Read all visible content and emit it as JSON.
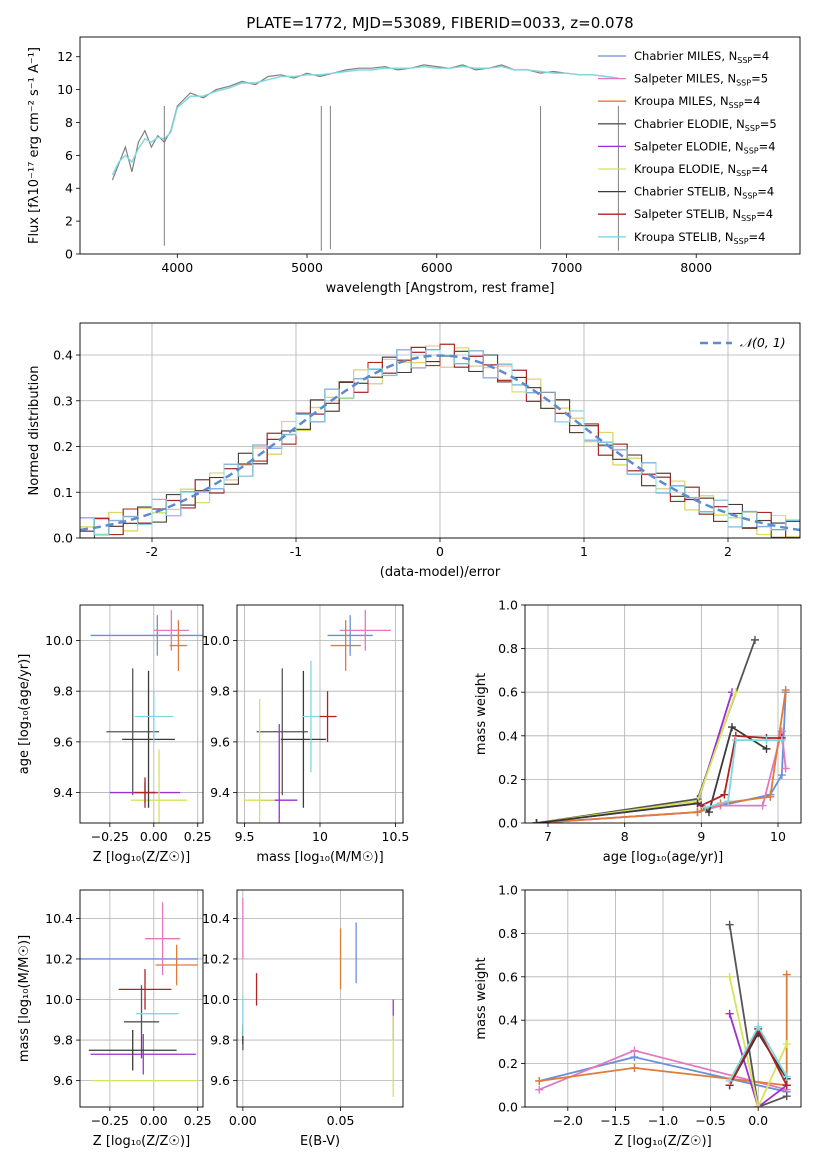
{
  "figure": {
    "title": "PLATE=1772, MJD=53089, FIBERID=0033, z=0.078"
  },
  "models": [
    {
      "label": "Chabrier MILES, N",
      "nssp": "4",
      "color": "#6a8fd8"
    },
    {
      "label": "Salpeter MILES, N",
      "nssp": "5",
      "color": "#e377c2"
    },
    {
      "label": "Kroupa MILES, N",
      "nssp": "4",
      "color": "#e07b39"
    },
    {
      "label": "Chabrier ELODIE, N",
      "nssp": "5",
      "color": "#555555"
    },
    {
      "label": "Salpeter ELODIE, N",
      "nssp": "4",
      "color": "#9b30d0"
    },
    {
      "label": "Kroupa ELODIE, N",
      "nssp": "4",
      "color": "#d7e35a"
    },
    {
      "label": "Chabrier STELIB, N",
      "nssp": "4",
      "color": "#3a3a3a"
    },
    {
      "label": "Salpeter STELIB, N",
      "nssp": "4",
      "color": "#b22222"
    },
    {
      "label": "Kroupa STELIB, N",
      "nssp": "4",
      "color": "#7fd7e0"
    }
  ],
  "chart_data": [
    {
      "id": "spectrum",
      "type": "line",
      "title": "PLATE=1772, MJD=53089, FIBERID=0033, z=0.078",
      "xlabel": "wavelength [Angstrom, rest frame]",
      "ylabel": "Flux [fλ10⁻¹⁷ erg cm⁻² s⁻¹ A⁻¹]",
      "xlim": [
        3250,
        8800
      ],
      "ylim": [
        0,
        13.2
      ],
      "xticks": [
        4000,
        5000,
        6000,
        7000,
        8000
      ],
      "yticks": [
        0,
        2,
        4,
        6,
        8,
        10,
        12
      ],
      "legend": "right",
      "series": [
        {
          "name": "data",
          "color": "#808080",
          "x": [
            3500,
            3550,
            3600,
            3650,
            3700,
            3750,
            3800,
            3850,
            3900,
            3950,
            4000,
            4100,
            4200,
            4300,
            4400,
            4500,
            4600,
            4700,
            4800,
            4900,
            5000,
            5100,
            5200,
            5300,
            5400,
            5500,
            5600,
            5700,
            5800,
            5900,
            6000,
            6100,
            6200,
            6300,
            6400,
            6500,
            6600,
            6700,
            6800,
            6900,
            7000,
            7100,
            7200,
            7300,
            7400
          ],
          "y": [
            4.5,
            5.5,
            6.5,
            5.0,
            6.8,
            7.5,
            6.5,
            7.2,
            6.8,
            7.5,
            9.0,
            9.8,
            9.5,
            10.0,
            10.2,
            10.5,
            10.3,
            10.8,
            10.9,
            10.7,
            11.0,
            10.8,
            11.0,
            11.2,
            11.3,
            11.3,
            11.4,
            11.2,
            11.3,
            11.5,
            11.4,
            11.3,
            11.5,
            11.2,
            11.3,
            11.5,
            11.2,
            11.2,
            11.0,
            11.1,
            11.0,
            10.9,
            10.9,
            10.8,
            10.7
          ]
        },
        {
          "name": "model",
          "color": "#7fd7e0",
          "x": [
            3500,
            3550,
            3600,
            3650,
            3700,
            3750,
            3800,
            3850,
            3900,
            3950,
            4000,
            4100,
            4200,
            4300,
            4400,
            4500,
            4600,
            4700,
            4800,
            4900,
            5000,
            5100,
            5200,
            5300,
            5400,
            5500,
            5600,
            5700,
            5800,
            5900,
            6000,
            6100,
            6200,
            6300,
            6400,
            6500,
            6600,
            6700,
            6800,
            6900,
            7000,
            7100,
            7200,
            7300,
            7400
          ],
          "y": [
            4.8,
            5.6,
            6.0,
            5.6,
            6.4,
            7.0,
            6.8,
            7.1,
            7.0,
            7.4,
            8.9,
            9.6,
            9.6,
            9.9,
            10.1,
            10.4,
            10.4,
            10.6,
            10.8,
            10.8,
            10.9,
            10.9,
            11.0,
            11.1,
            11.2,
            11.2,
            11.3,
            11.3,
            11.3,
            11.4,
            11.3,
            11.3,
            11.4,
            11.3,
            11.3,
            11.4,
            11.2,
            11.2,
            11.1,
            11.0,
            11.0,
            10.9,
            10.9,
            10.8,
            10.7
          ]
        }
      ]
    },
    {
      "id": "residuals",
      "type": "line",
      "xlabel": "(data-model)/error",
      "ylabel": "Normed distribution",
      "xlim": [
        -2.5,
        2.5
      ],
      "ylim": [
        0,
        0.47
      ],
      "xticks": [
        -2,
        -1,
        0,
        1,
        2
      ],
      "yticks": [
        0.0,
        0.1,
        0.2,
        0.3,
        0.4
      ],
      "legend": "top-right",
      "gauss_label": "𝒩(0, 1)",
      "gauss_color": "#5b8bd0"
    },
    {
      "id": "z_age",
      "type": "scatter",
      "xlabel": "Z [log₁₀(Z/Z☉)]",
      "ylabel": "age  [log₁₀(age/yr)]",
      "xlim": [
        -0.42,
        0.28
      ],
      "ylim": [
        9.28,
        10.14
      ],
      "xticks": [
        -0.25,
        0.0,
        0.25
      ],
      "xtick_labels": [
        "−0.25",
        "0.00",
        "0.25"
      ],
      "yticks": [
        9.4,
        9.6,
        9.8,
        10.0
      ],
      "points": [
        {
          "x": 0.02,
          "y": 10.02,
          "xerr": 0.38,
          "yerr": 0.08
        },
        {
          "x": 0.1,
          "y": 10.04,
          "xerr": 0.1,
          "yerr": 0.08
        },
        {
          "x": 0.14,
          "y": 9.98,
          "xerr": 0.05,
          "yerr": 0.1
        },
        {
          "x": -0.12,
          "y": 9.64,
          "xerr": 0.15,
          "yerr": 0.25
        },
        {
          "x": -0.05,
          "y": 9.4,
          "xerr": 0.2,
          "yerr": 0.04
        },
        {
          "x": 0.03,
          "y": 9.37,
          "xerr": 0.16,
          "yerr": 0.2
        },
        {
          "x": -0.03,
          "y": 9.61,
          "xerr": 0.15,
          "yerr": 0.27
        },
        {
          "x": -0.05,
          "y": 9.4,
          "xerr": 0.06,
          "yerr": 0.06
        },
        {
          "x": 0.0,
          "y": 9.7,
          "xerr": 0.11,
          "yerr": 0.1
        }
      ]
    },
    {
      "id": "mass_age",
      "type": "scatter",
      "xlabel": "mass [log₁₀(M/M☉)]",
      "ylabel": "",
      "xlim": [
        9.45,
        10.55
      ],
      "ylim": [
        9.28,
        10.14
      ],
      "xticks": [
        9.5,
        10.0,
        10.5
      ],
      "yticks": [
        9.4,
        9.6,
        9.8,
        10.0
      ],
      "points": [
        {
          "x": 10.2,
          "y": 10.02,
          "xerr": 0.15,
          "yerr": 0.08
        },
        {
          "x": 10.3,
          "y": 10.04,
          "xerr": 0.17,
          "yerr": 0.08
        },
        {
          "x": 10.17,
          "y": 9.98,
          "xerr": 0.1,
          "yerr": 0.1
        },
        {
          "x": 9.75,
          "y": 9.64,
          "xerr": 0.17,
          "yerr": 0.25
        },
        {
          "x": 9.73,
          "y": 9.37,
          "xerr": 0.12,
          "yerr": 0.3
        },
        {
          "x": 9.6,
          "y": 9.37,
          "xerr": 0.1,
          "yerr": 0.4
        },
        {
          "x": 9.89,
          "y": 9.61,
          "xerr": 0.15,
          "yerr": 0.27
        },
        {
          "x": 10.05,
          "y": 9.7,
          "xerr": 0.06,
          "yerr": 0.1
        },
        {
          "x": 9.94,
          "y": 9.7,
          "xerr": 0.06,
          "yerr": 0.22
        }
      ]
    },
    {
      "id": "age_weight",
      "type": "line",
      "xlabel": "age  [log₁₀(age/yr)]",
      "ylabel": "mass weight",
      "xlim": [
        6.7,
        10.3
      ],
      "ylim": [
        0.0,
        1.0
      ],
      "xticks": [
        7,
        8,
        9,
        10
      ],
      "yticks": [
        0.0,
        0.2,
        0.4,
        0.6,
        0.8,
        1.0
      ],
      "series": [
        {
          "name": "Chabrier MILES",
          "x": [
            6.85,
            8.95,
            9.25,
            9.9,
            10.05,
            10.1
          ],
          "y": [
            0.0,
            0.05,
            0.08,
            0.13,
            0.22,
            0.6
          ]
        },
        {
          "name": "Salpeter MILES",
          "x": [
            6.85,
            8.95,
            9.25,
            9.8,
            10.05,
            10.1
          ],
          "y": [
            0.0,
            0.05,
            0.08,
            0.08,
            0.42,
            0.25
          ]
        },
        {
          "name": "Kroupa MILES",
          "x": [
            6.85,
            8.95,
            9.25,
            9.9,
            10.1
          ],
          "y": [
            0.0,
            0.05,
            0.09,
            0.12,
            0.61
          ]
        },
        {
          "name": "Chabrier ELODIE",
          "x": [
            6.85,
            8.95,
            9.7
          ],
          "y": [
            0.0,
            0.11,
            0.84
          ]
        },
        {
          "name": "Salpeter ELODIE",
          "x": [
            6.85,
            8.95,
            9.4
          ],
          "y": [
            0.0,
            0.09,
            0.6
          ]
        },
        {
          "name": "Kroupa ELODIE",
          "x": [
            6.85,
            8.95,
            9.45
          ],
          "y": [
            0.0,
            0.1,
            0.6
          ]
        },
        {
          "name": "Chabrier STELIB",
          "x": [
            6.85,
            8.95,
            9.1,
            9.4,
            9.85
          ],
          "y": [
            0.0,
            0.09,
            0.05,
            0.44,
            0.34
          ]
        },
        {
          "name": "Salpeter STELIB",
          "x": [
            9.0,
            9.3,
            9.45,
            9.85,
            10.05
          ],
          "y": [
            0.08,
            0.13,
            0.4,
            0.39,
            0.39
          ]
        },
        {
          "name": "Kroupa STELIB",
          "x": [
            9.05,
            9.35,
            9.45,
            9.85,
            10.05
          ],
          "y": [
            0.07,
            0.1,
            0.38,
            0.38,
            0.38
          ]
        }
      ]
    },
    {
      "id": "z_mass",
      "type": "scatter",
      "xlabel": "Z [log₁₀(Z/Z☉)]",
      "ylabel": "mass [log₁₀(M/M☉)]",
      "xlim": [
        -0.42,
        0.28
      ],
      "ylim": [
        9.47,
        10.54
      ],
      "xticks": [
        -0.25,
        0.0,
        0.25
      ],
      "xtick_labels": [
        "−0.25",
        "0.00",
        "0.25"
      ],
      "yticks": [
        9.6,
        9.8,
        10.0,
        10.2,
        10.4
      ],
      "points": [
        {
          "x": -0.1,
          "y": 10.2,
          "xerr": 0.35,
          "yerr": 0.0
        },
        {
          "x": 0.05,
          "y": 10.3,
          "xerr": 0.1,
          "yerr": 0.18
        },
        {
          "x": 0.13,
          "y": 10.17,
          "xerr": 0.12,
          "yerr": 0.1
        },
        {
          "x": -0.07,
          "y": 9.89,
          "xerr": 0.1,
          "yerr": 0.18
        },
        {
          "x": -0.06,
          "y": 9.73,
          "xerr": 0.3,
          "yerr": 0.1
        },
        {
          "x": -0.05,
          "y": 9.6,
          "xerr": 0.3,
          "yerr": 0.0
        },
        {
          "x": -0.12,
          "y": 9.75,
          "xerr": 0.25,
          "yerr": 0.1
        },
        {
          "x": -0.05,
          "y": 10.05,
          "xerr": 0.15,
          "yerr": 0.1
        },
        {
          "x": 0.02,
          "y": 9.93,
          "xerr": 0.12,
          "yerr": 0.0
        }
      ]
    },
    {
      "id": "ebv_mass",
      "type": "scatter",
      "xlabel": "E(B-V)",
      "ylabel": "",
      "xlim": [
        -0.003,
        0.082
      ],
      "ylim": [
        9.47,
        10.54
      ],
      "xticks": [
        0.0,
        0.05
      ],
      "xtick_labels": [
        "0.00",
        "0.05"
      ],
      "yticks": [
        9.6,
        9.8,
        10.0,
        10.2,
        10.4
      ],
      "points": [
        {
          "x": 0.058,
          "y": 10.23,
          "yerr": 0.15
        },
        {
          "x": 0.0,
          "y": 10.35,
          "yerr": 0.15
        },
        {
          "x": 0.05,
          "y": 10.2,
          "yerr": 0.15
        },
        {
          "x": 0.0,
          "y": 9.8,
          "yerr": 0.05
        },
        {
          "x": 0.077,
          "y": 9.9,
          "yerr": 0.1
        },
        {
          "x": 0.077,
          "y": 9.72,
          "yerr": 0.2
        },
        {
          "x": 0.0,
          "y": 9.83,
          "yerr": 0.05
        },
        {
          "x": 0.007,
          "y": 10.05,
          "yerr": 0.08
        },
        {
          "x": 0.0,
          "y": 9.92,
          "yerr": 0.1
        }
      ]
    },
    {
      "id": "z_weight",
      "type": "line",
      "xlabel": "Z [log₁₀(Z/Z☉)]",
      "ylabel": "mass weight",
      "xlim": [
        -2.45,
        0.45
      ],
      "ylim": [
        0.0,
        1.0
      ],
      "xticks": [
        -2.0,
        -1.5,
        -1.0,
        -0.5,
        0.0
      ],
      "xtick_labels": [
        "−2.0",
        "−1.5",
        "−1.0",
        "−0.5",
        "0.0"
      ],
      "yticks": [
        0.0,
        0.2,
        0.4,
        0.6,
        0.8,
        1.0
      ],
      "series": [
        {
          "name": "Chabrier MILES",
          "x": [
            -2.3,
            -1.3,
            0.3
          ],
          "y": [
            0.12,
            0.23,
            0.07
          ]
        },
        {
          "name": "Salpeter MILES",
          "x": [
            -2.3,
            -1.3,
            0.3
          ],
          "y": [
            0.08,
            0.26,
            0.08
          ]
        },
        {
          "name": "Kroupa MILES",
          "x": [
            -2.3,
            -1.3,
            0.3,
            0.3
          ],
          "y": [
            0.12,
            0.18,
            0.1,
            0.61
          ]
        },
        {
          "name": "Chabrier ELODIE",
          "x": [
            -0.3,
            0.0,
            0.3
          ],
          "y": [
            0.84,
            0.0,
            0.05
          ]
        },
        {
          "name": "Salpeter ELODIE",
          "x": [
            -0.3,
            0.0,
            0.3
          ],
          "y": [
            0.43,
            0.0,
            0.1
          ]
        },
        {
          "name": "Kroupa ELODIE",
          "x": [
            -0.3,
            0.0,
            0.3
          ],
          "y": [
            0.6,
            0.0,
            0.29
          ]
        },
        {
          "name": "Chabrier STELIB",
          "x": [
            -0.3,
            0.0,
            0.3
          ],
          "y": [
            0.1,
            0.34,
            0.13
          ]
        },
        {
          "name": "Salpeter STELIB",
          "x": [
            -0.3,
            0.0,
            0.3
          ],
          "y": [
            0.1,
            0.36,
            0.1
          ]
        },
        {
          "name": "Kroupa STELIB",
          "x": [
            -0.3,
            0.0,
            0.3
          ],
          "y": [
            0.12,
            0.37,
            0.14
          ]
        }
      ]
    }
  ]
}
